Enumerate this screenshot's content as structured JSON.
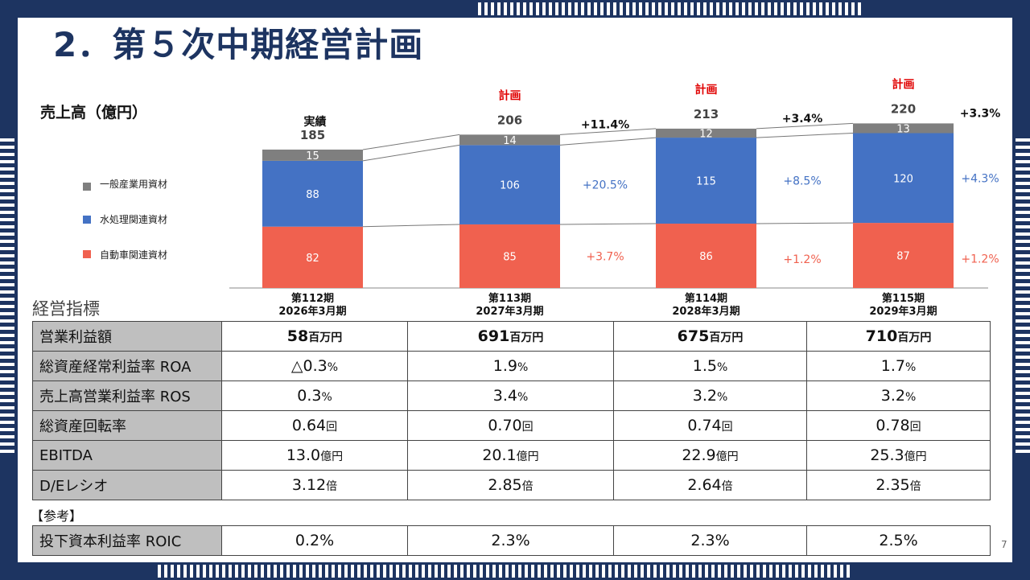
{
  "title": "2．第５次中期経営計画",
  "chart_data": {
    "type": "bar",
    "stacked": true,
    "ylabel": "売上高（億円）",
    "categories": [
      "第112期 2026年3月期",
      "第113期 2027年3月期",
      "第114期 2028年3月期",
      "第115期 2029年3月期"
    ],
    "categories_line1": [
      "第112期",
      "第113期",
      "第114期",
      "第115期"
    ],
    "categories_line2": [
      "2026年3月期",
      "2027年3月期",
      "2028年3月期",
      "2029年3月期"
    ],
    "status_labels": [
      "実績",
      "計画",
      "計画",
      "計画"
    ],
    "totals": [
      185,
      206,
      213,
      220
    ],
    "total_growth": [
      "",
      "+11.4%",
      "+3.4%",
      "+3.3%"
    ],
    "series": [
      {
        "name": "自動車関連資材",
        "color": "#f0614f",
        "values": [
          82,
          85,
          86,
          87
        ],
        "growth": [
          "",
          "+3.7%",
          "+1.2%",
          "+1.2%"
        ]
      },
      {
        "name": "水処理関連資材",
        "color": "#4472c4",
        "values": [
          88,
          106,
          115,
          120
        ],
        "growth": [
          "",
          "+20.5%",
          "+8.5%",
          "+4.3%"
        ]
      },
      {
        "name": "一般産業用資材",
        "color": "#7f7f7f",
        "values": [
          15,
          14,
          12,
          13
        ]
      }
    ],
    "legend_order": [
      "一般産業用資材",
      "水処理関連資材",
      "自動車関連資材"
    ]
  },
  "indicators": {
    "title": "経営指標",
    "rows": [
      {
        "label": "営業利益額",
        "values": [
          "58",
          "691",
          "675",
          "710"
        ],
        "unit": "百万円",
        "prefix": "",
        "bold": true
      },
      {
        "label": "総資産経常利益率 ROA",
        "values": [
          "0.3",
          "1.9",
          "1.5",
          "1.7"
        ],
        "unit": "%",
        "prefix": "△"
      },
      {
        "label": "売上高営業利益率 ROS",
        "values": [
          "0.3",
          "3.4",
          "3.2",
          "3.2"
        ],
        "unit": "%",
        "prefix": ""
      },
      {
        "label": "総資産回転率",
        "values": [
          "0.64",
          "0.70",
          "0.74",
          "0.78"
        ],
        "unit": "回",
        "prefix": ""
      },
      {
        "label": "EBITDA",
        "values": [
          "13.0",
          "20.1",
          "22.9",
          "25.3"
        ],
        "unit": "億円",
        "prefix": ""
      },
      {
        "label": "D/Eレシオ",
        "values": [
          "3.12",
          "2.85",
          "2.64",
          "2.35"
        ],
        "unit": "倍",
        "prefix": ""
      }
    ]
  },
  "reference": {
    "heading": "【参考】",
    "label": "投下資本利益率 ROIC",
    "values": [
      "0.2%",
      "2.3%",
      "2.3%",
      "2.5%"
    ]
  },
  "page_number": "7"
}
